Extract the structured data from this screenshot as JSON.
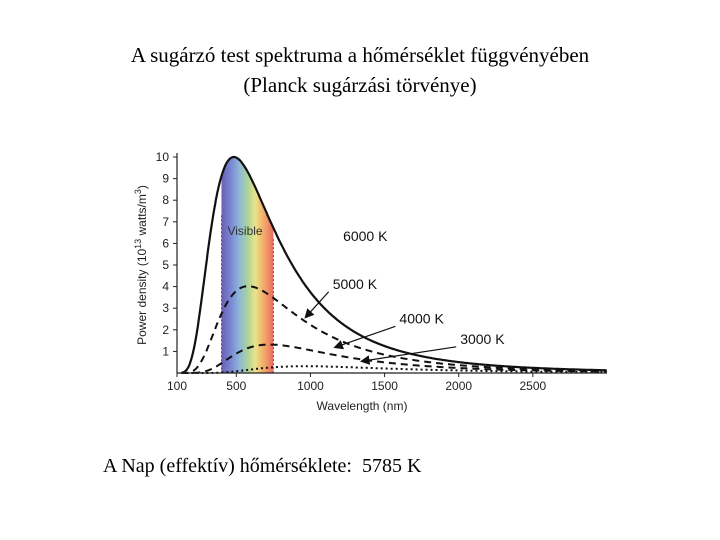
{
  "title": {
    "line1": "A sugárzó test spektruma a hőmérséklet függvényében",
    "line2": "(Planck sugárzási törvénye)"
  },
  "note": "A Nap (effektív) hőmérséklete:  5785 K",
  "chart_data": {
    "type": "line",
    "xlabel": "Wavelength (nm)",
    "ylabel": "Power density (10^13 watts/m^3)",
    "xlim": [
      100,
      3000
    ],
    "ylim": [
      0,
      10
    ],
    "x_ticks": [
      100,
      500,
      1000,
      1500,
      2000,
      2500
    ],
    "y_ticks": [
      1,
      2,
      3,
      4,
      5,
      6,
      7,
      8,
      9,
      10
    ],
    "visible_band": {
      "label": "Visible",
      "range": [
        400,
        750
      ]
    },
    "series": [
      {
        "name": "6000 K",
        "temperature": 6000,
        "peak": [
          483,
          10.0
        ],
        "line_style": "solid"
      },
      {
        "name": "5000 K",
        "temperature": 5000,
        "peak": [
          580,
          4.0
        ],
        "line_style": "dashed"
      },
      {
        "name": "4000 K",
        "temperature": 4000,
        "peak": [
          725,
          1.3
        ],
        "line_style": "dashed"
      },
      {
        "name": "3000 K",
        "temperature": 3000,
        "peak": [
          966,
          0.35
        ],
        "line_style": "dotted"
      }
    ],
    "arrows": [
      "5000 K",
      "4000 K",
      "3000 K"
    ]
  }
}
